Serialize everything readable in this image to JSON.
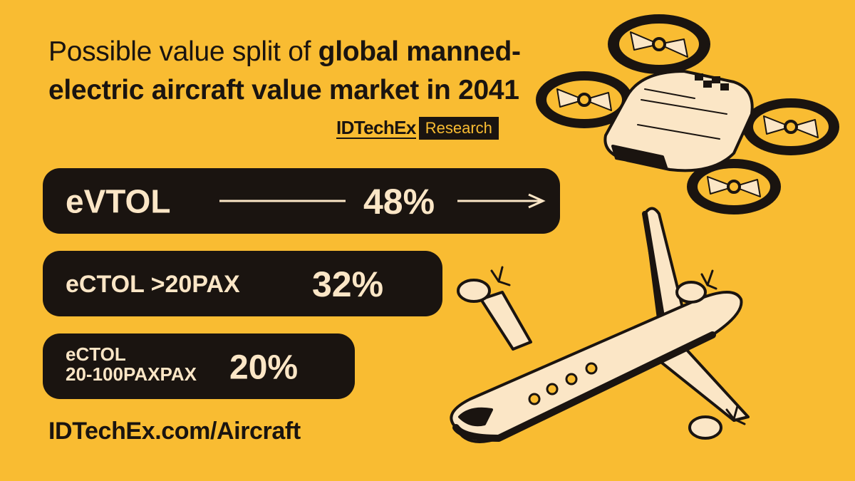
{
  "title": {
    "light": "Possible value split of ",
    "bold": "global manned-electric aircraft value market in 2041"
  },
  "brand": {
    "name": "IDTechEx",
    "tag": "Research"
  },
  "chart_data": {
    "type": "bar",
    "title": "Possible value split of global manned-electric aircraft value market in 2041",
    "categories": [
      "eVTOL",
      "eCTOL >20PAX",
      "eCTOL 20-100PAXPAX"
    ],
    "category_lines": [
      [
        "eVTOL"
      ],
      [
        "eCTOL >20PAX"
      ],
      [
        "eCTOL",
        "20-100PAXPAX"
      ]
    ],
    "values": [
      48,
      32,
      20
    ],
    "value_labels": [
      "48%",
      "32%",
      "20%"
    ],
    "unit": "%",
    "colors": {
      "bar": "#1a1410",
      "text": "#fbe6c6",
      "background": "#F9BC32"
    }
  },
  "footer": "IDTechEx.com/Aircraft"
}
